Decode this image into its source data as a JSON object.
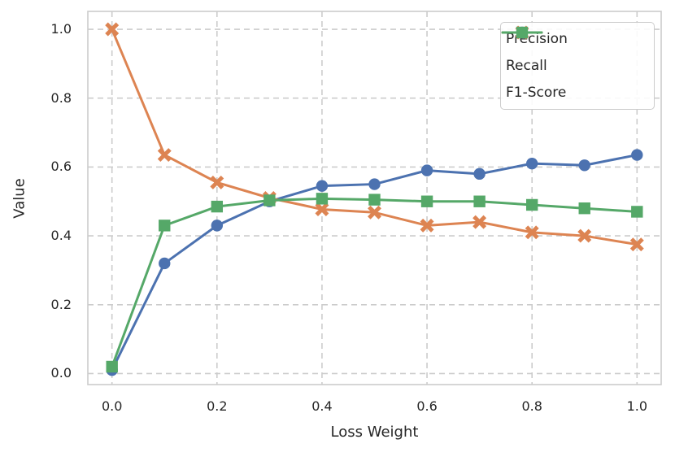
{
  "chart_data": {
    "type": "line",
    "x": [
      0.0,
      0.1,
      0.2,
      0.3,
      0.4,
      0.5,
      0.6,
      0.7,
      0.8,
      0.9,
      1.0
    ],
    "series": [
      {
        "name": "Precision",
        "marker": "circle",
        "color": "#4C72B0",
        "values": [
          0.01,
          0.32,
          0.43,
          0.5,
          0.545,
          0.55,
          0.59,
          0.58,
          0.61,
          0.605,
          0.635
        ]
      },
      {
        "name": "Recall",
        "marker": "x",
        "color": "#DD8452",
        "values": [
          1.0,
          0.635,
          0.555,
          0.51,
          0.477,
          0.468,
          0.43,
          0.44,
          0.41,
          0.4,
          0.375
        ]
      },
      {
        "name": "F1-Score",
        "marker": "square",
        "color": "#55A868",
        "values": [
          0.02,
          0.43,
          0.485,
          0.503,
          0.508,
          0.505,
          0.5,
          0.5,
          0.49,
          0.48,
          0.47
        ]
      }
    ],
    "xlabel": "Loss Weight",
    "ylabel": "Value",
    "xticks": [
      0.0,
      0.2,
      0.4,
      0.6,
      0.8,
      1.0
    ],
    "yticks": [
      0.0,
      0.2,
      0.4,
      0.6,
      0.8,
      1.0
    ],
    "xtick_labels": [
      "0.0",
      "0.2",
      "0.4",
      "0.6",
      "0.8",
      "1.0"
    ],
    "ytick_labels": [
      "0.0",
      "0.2",
      "0.4",
      "0.6",
      "0.8",
      "1.0"
    ],
    "xlim": [
      -0.046,
      1.046
    ],
    "ylim": [
      -0.032,
      1.052
    ],
    "grid": {
      "on": true,
      "style": "dashed",
      "color": "#cccccc"
    },
    "legend": {
      "position": "upper right",
      "entries": [
        "Precision",
        "Recall",
        "F1-Score"
      ]
    },
    "colors": {
      "text": "#262626",
      "spine": "#cccccc",
      "background": "#ffffff"
    }
  }
}
